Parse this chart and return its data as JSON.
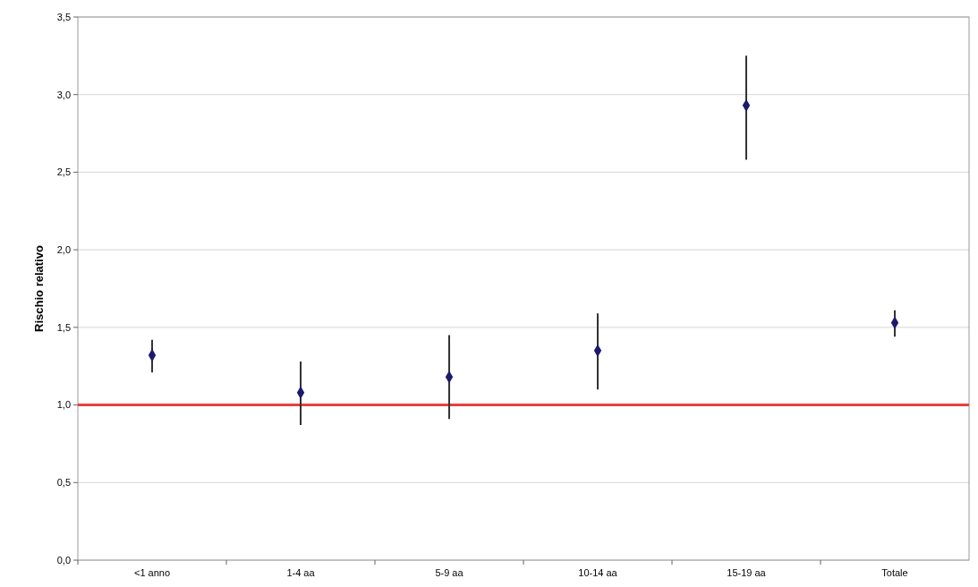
{
  "chart_data": {
    "type": "scatter",
    "ylabel": "Rischio relativo",
    "categories": [
      "<1 anno",
      "1-4 aa",
      "5-9 aa",
      "10-14 aa",
      "15-19 aa",
      "Totale"
    ],
    "series": [
      {
        "color": "#1c1a6b",
        "values": [
          1.32,
          1.08,
          1.18,
          1.35,
          2.93,
          1.53
        ],
        "errors": [
          [
            1.21,
            1.42
          ],
          [
            0.87,
            1.28
          ],
          [
            0.91,
            1.45
          ],
          [
            1.1,
            1.59
          ],
          [
            2.58,
            3.25
          ],
          [
            1.44,
            1.61
          ]
        ]
      }
    ],
    "marker": "diamond",
    "grid": "y",
    "ylim": [
      0,
      3.5
    ],
    "yticks": [
      {
        "value": 0,
        "label": "0,0"
      },
      {
        "value": 0.5,
        "label": "0,5"
      },
      {
        "value": 1,
        "label": "1,0"
      },
      {
        "value": 1.5,
        "label": "1,5"
      },
      {
        "value": 2,
        "label": "2,0"
      },
      {
        "value": 2.5,
        "label": "2,5"
      },
      {
        "value": 3,
        "label": "3,0"
      },
      {
        "value": 3.5,
        "label": "3,5"
      }
    ],
    "ref_lines": [
      {
        "axis": "y",
        "value": 1,
        "color": "#e8403a"
      }
    ]
  }
}
